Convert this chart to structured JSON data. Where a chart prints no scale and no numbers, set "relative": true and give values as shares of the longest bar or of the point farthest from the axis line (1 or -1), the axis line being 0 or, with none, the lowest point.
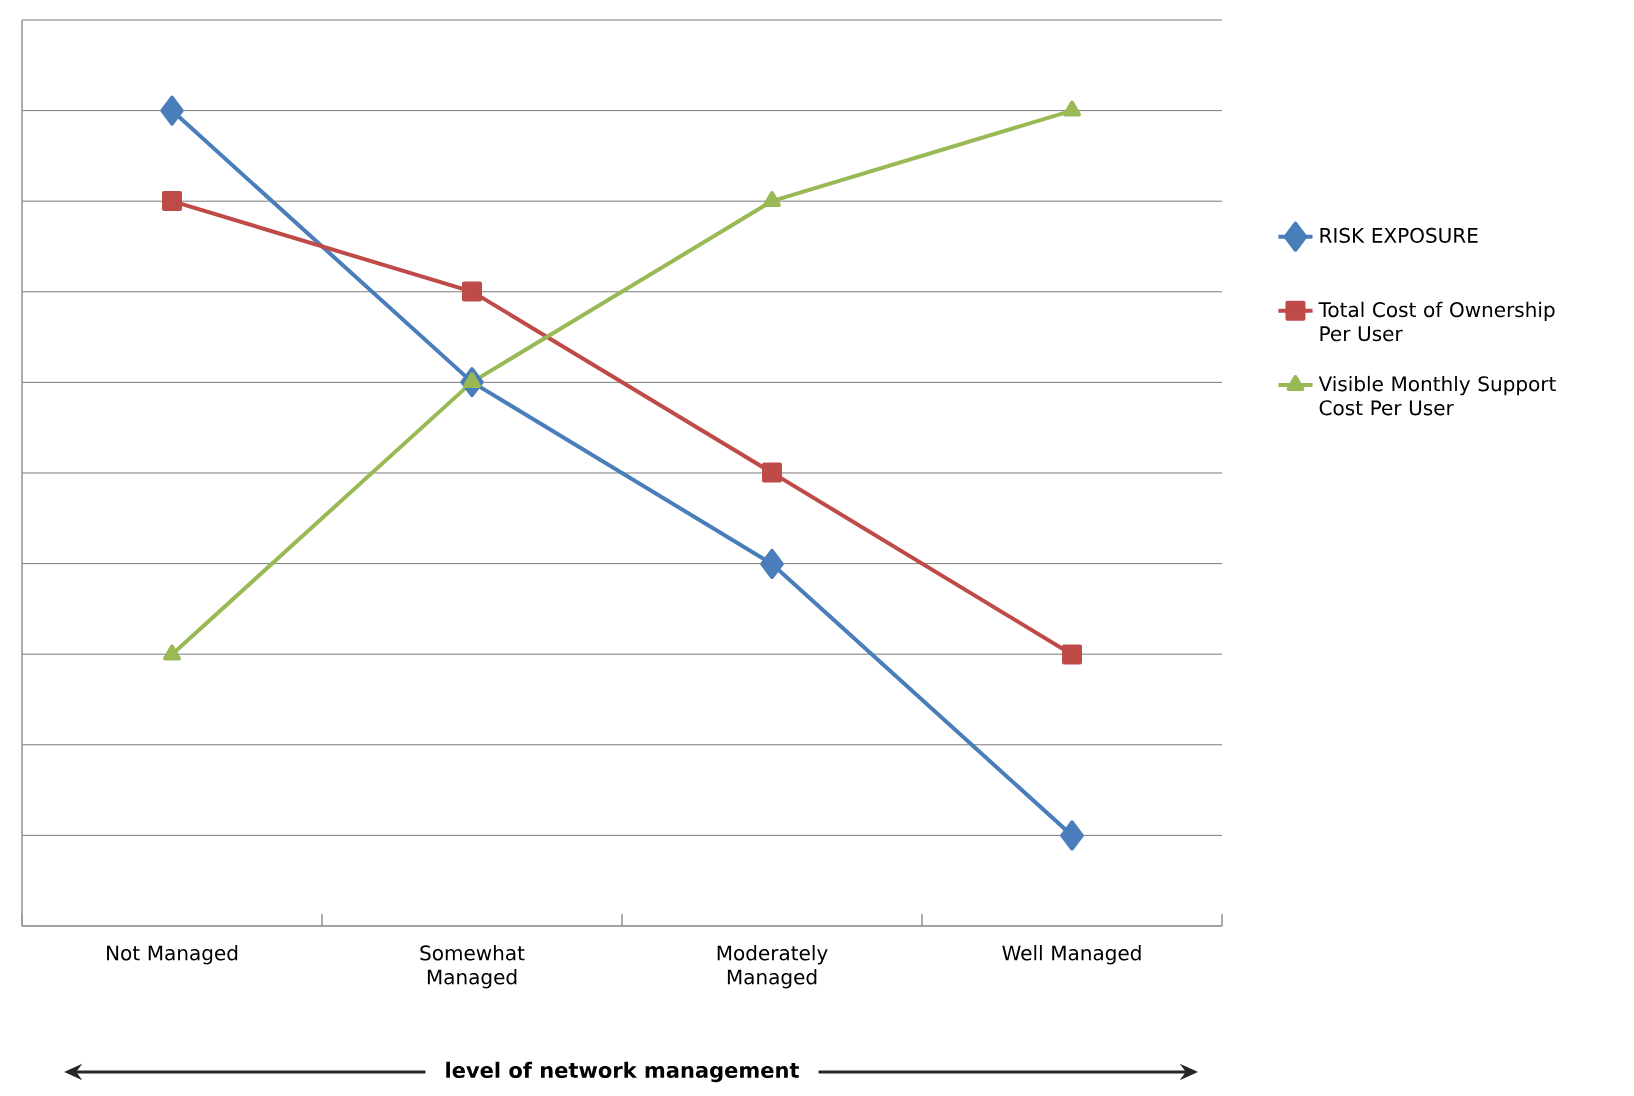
{
  "chart_data": {
    "type": "line",
    "relative": true,
    "xlabel": "level of network management",
    "categories": [
      "Not Managed",
      "Somewhat Managed",
      "Moderately Managed",
      "Well Managed"
    ],
    "series": [
      {
        "name": "RISK EXPOSURE",
        "color": "#4a7ebb",
        "marker": "diamond",
        "values": [
          1,
          0.667,
          0.444,
          0.111
        ]
      },
      {
        "name": "Total Cost of Ownership Per User",
        "color": "#be4b48",
        "marker": "square",
        "values": [
          0.889,
          0.778,
          0.556,
          0.333
        ]
      },
      {
        "name": "Visible Monthly Support Cost Per User",
        "color": "#98b954",
        "marker": "triangle",
        "values": [
          0.333,
          0.667,
          0.889,
          1
        ]
      }
    ],
    "grid": "y",
    "legend": "right",
    "line_style": "solid"
  }
}
